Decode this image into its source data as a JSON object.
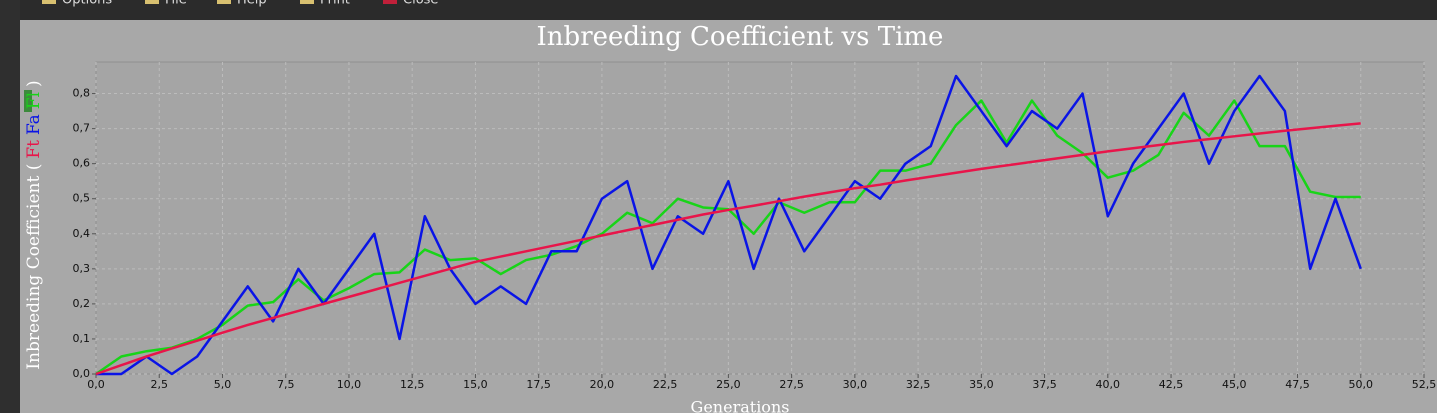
{
  "toolbar": [
    "Options",
    "File",
    "Help",
    "Print",
    "Close"
  ],
  "chart_data": {
    "type": "line",
    "title": "Inbreeding Coefficient vs Time",
    "x_label": "Generations",
    "y_label": "Inbreeding Coefficient (",
    "y_label_end": ")",
    "x": [
      0,
      1,
      2,
      3,
      4,
      5,
      6,
      7,
      8,
      9,
      10,
      11,
      12,
      13,
      14,
      15,
      16,
      17,
      18,
      19,
      20,
      21,
      22,
      23,
      24,
      25,
      26,
      27,
      28,
      29,
      30,
      31,
      32,
      33,
      34,
      35,
      36,
      37,
      38,
      39,
      40,
      41,
      42,
      43,
      44,
      45,
      46,
      47,
      48,
      49,
      50
    ],
    "series": [
      {
        "name": "Ft",
        "color": "#e8154a",
        "values": [
          0,
          0.025,
          0.05,
          0.073,
          0.095,
          0.118,
          0.14,
          0.16,
          0.18,
          0.2,
          0.22,
          0.24,
          0.26,
          0.28,
          0.3,
          0.32,
          0.335,
          0.35,
          0.365,
          0.38,
          0.395,
          0.41,
          0.425,
          0.44,
          0.455,
          0.468,
          0.48,
          0.493,
          0.506,
          0.518,
          0.53,
          0.54,
          0.552,
          0.563,
          0.574,
          0.585,
          0.595,
          0.605,
          0.615,
          0.625,
          0.635,
          0.644,
          0.653,
          0.662,
          0.67,
          0.678,
          0.686,
          0.694,
          0.701,
          0.708,
          0.715
        ]
      },
      {
        "name": "Fa",
        "color": "#0a14e6",
        "values": [
          0,
          0,
          0.05,
          0,
          0.05,
          0.15,
          0.25,
          0.15,
          0.3,
          0.2,
          0.3,
          0.4,
          0.1,
          0.45,
          0.3,
          0.2,
          0.25,
          0.2,
          0.35,
          0.35,
          0.5,
          0.55,
          0.3,
          0.45,
          0.4,
          0.55,
          0.3,
          0.5,
          0.35,
          0.45,
          0.55,
          0.5,
          0.6,
          0.65,
          0.85,
          0.75,
          0.65,
          0.75,
          0.7,
          0.8,
          0.45,
          0.6,
          0.7,
          0.8,
          0.6,
          0.75,
          0.85,
          0.75,
          0.3,
          0.5,
          0.3
        ]
      },
      {
        "name": "Fl",
        "color": "#18d418",
        "values": [
          0,
          0.05,
          0.065,
          0.075,
          0.1,
          0.14,
          0.195,
          0.205,
          0.27,
          0.21,
          0.245,
          0.285,
          0.29,
          0.355,
          0.325,
          0.33,
          0.285,
          0.325,
          0.34,
          0.365,
          0.4,
          0.46,
          0.43,
          0.5,
          0.475,
          0.47,
          0.4,
          0.49,
          0.46,
          0.49,
          0.49,
          0.58,
          0.58,
          0.6,
          0.71,
          0.78,
          0.66,
          0.78,
          0.68,
          0.63,
          0.56,
          0.58,
          0.625,
          0.745,
          0.68,
          0.78,
          0.65,
          0.65,
          0.52,
          0.505,
          0.505
        ]
      }
    ],
    "xlim": [
      0,
      52.5
    ],
    "xticks": [
      {
        "value": 0,
        "label": "0,0"
      },
      {
        "value": 2.5,
        "label": "2,5"
      },
      {
        "value": 5,
        "label": "5,0"
      },
      {
        "value": 7.5,
        "label": "7,5"
      },
      {
        "value": 10,
        "label": "10,0"
      },
      {
        "value": 12.5,
        "label": "12,5"
      },
      {
        "value": 15,
        "label": "15,0"
      },
      {
        "value": 17.5,
        "label": "17,5"
      },
      {
        "value": 20,
        "label": "20,0"
      },
      {
        "value": 22.5,
        "label": "22,5"
      },
      {
        "value": 25,
        "label": "25,0"
      },
      {
        "value": 27.5,
        "label": "27,5"
      },
      {
        "value": 30,
        "label": "30,0"
      },
      {
        "value": 32.5,
        "label": "32,5"
      },
      {
        "value": 35,
        "label": "35,0"
      },
      {
        "value": 37.5,
        "label": "37,5"
      },
      {
        "value": 40,
        "label": "40,0"
      },
      {
        "value": 42.5,
        "label": "42,5"
      },
      {
        "value": 45,
        "label": "45,0"
      },
      {
        "value": 47.5,
        "label": "47,5"
      },
      {
        "value": 50,
        "label": "50,0"
      },
      {
        "value": 52.5,
        "label": "52,5"
      }
    ],
    "ylim": [
      0,
      0.89
    ],
    "yticks": [
      {
        "value": 0,
        "label": "0,0"
      },
      {
        "value": 0.1,
        "label": "0,1"
      },
      {
        "value": 0.2,
        "label": "0,2"
      },
      {
        "value": 0.3,
        "label": "0,3"
      },
      {
        "value": 0.4,
        "label": "0,4"
      },
      {
        "value": 0.5,
        "label": "0,5"
      },
      {
        "value": 0.6,
        "label": "0,6"
      },
      {
        "value": 0.7,
        "label": "0,7"
      },
      {
        "value": 0.8,
        "label": "0,8"
      }
    ],
    "grid": true
  }
}
